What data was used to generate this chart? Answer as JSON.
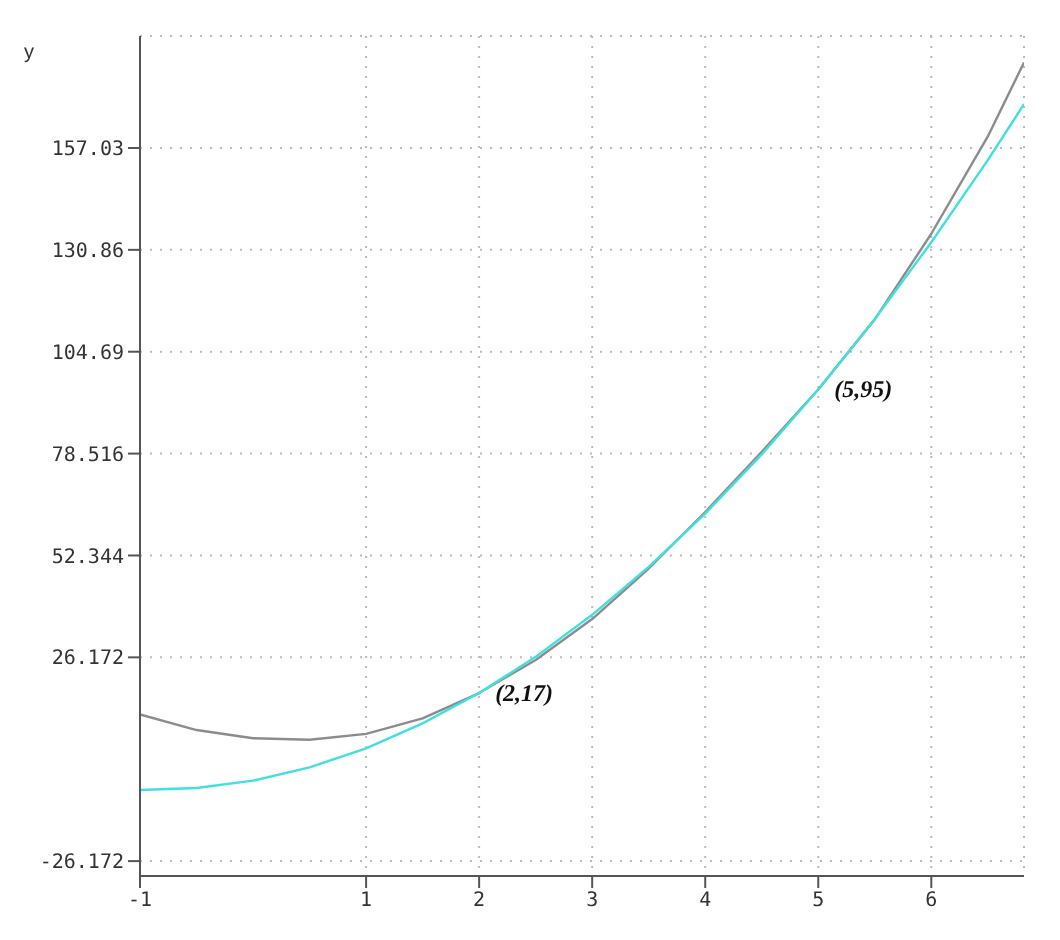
{
  "chart_data": {
    "type": "line",
    "ylabel": "y",
    "x": [
      -1,
      -0.5,
      0,
      0.5,
      1,
      1.5,
      2,
      2.5,
      3,
      3.5,
      4,
      4.5,
      5,
      5.5,
      6,
      6.5,
      6.82
    ],
    "series": [
      {
        "color": "#8c8c8c",
        "values": [
          11.5,
          7.5,
          5.4,
          5,
          6.5,
          10.5,
          17,
          25.5,
          36,
          49,
          63.5,
          79,
          95,
          113,
          135,
          160,
          179
        ]
      },
      {
        "color": "#40e0e0",
        "values": [
          -7.9,
          -7.4,
          -5.5,
          -2.1,
          2.8,
          9.2,
          17,
          26.3,
          37.1,
          49.4,
          63.1,
          78.3,
          95,
          113.1,
          132.8,
          153.9,
          168.3
        ]
      }
    ],
    "xlim": [
      -1,
      6.82
    ],
    "xticks": [
      -1,
      1,
      2,
      3,
      4,
      5,
      6
    ],
    "ylim": [
      -30,
      185.8
    ],
    "yticks": [
      -26.172,
      26.172,
      52.344,
      78.516,
      104.69,
      130.86,
      157.03
    ],
    "grid": true,
    "marker": "none",
    "line_style": "solid",
    "annotations": [
      {
        "text": "(2,17)",
        "x": 2,
        "y": 17
      },
      {
        "text": "(5,95)",
        "x": 5,
        "y": 95
      }
    ]
  }
}
